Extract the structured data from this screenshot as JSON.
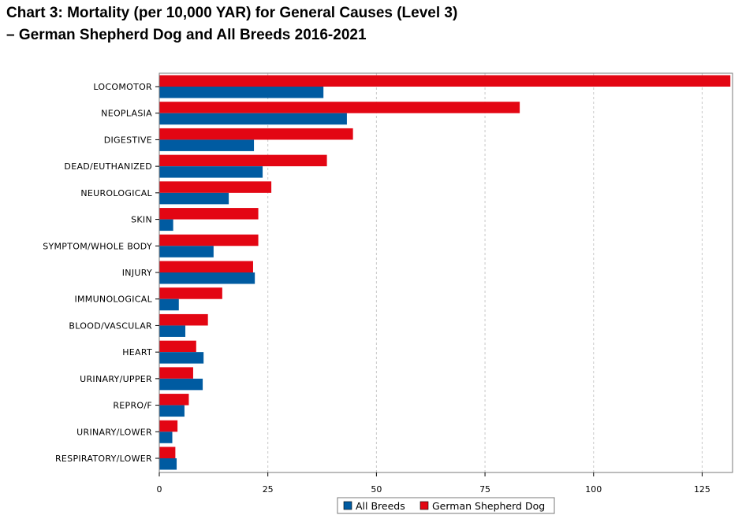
{
  "title_line1": "Chart 3: Mortality (per 10,000 YAR) for General Causes (Level 3)",
  "title_line2": "–  German Shepherd Dog and All Breeds 2016-2021",
  "colors": {
    "gsd": "#e30613",
    "all": "#005ba1",
    "grid": "#c8c8c8"
  },
  "chart_data": {
    "type": "bar",
    "orientation": "horizontal",
    "title": "Chart 3: Mortality (per 10,000 YAR) for General Causes (Level 3) –  German Shepherd Dog and All Breeds 2016-2021",
    "xlabel": "",
    "ylabel": "",
    "xlim": [
      0,
      132
    ],
    "xticks": [
      0,
      25,
      50,
      75,
      100,
      125
    ],
    "grid": "vertical dashed",
    "legend": "bottom",
    "categories": [
      "LOCOMOTOR",
      "NEOPLASIA",
      "DIGESTIVE",
      "DEAD/EUTHANIZED",
      "NEUROLOGICAL",
      "SKIN",
      "SYMPTOM/WHOLE BODY",
      "INJURY",
      "IMMUNOLOGICAL",
      "BLOOD/VASCULAR",
      "HEART",
      "URINARY/UPPER",
      "REPRO/F",
      "URINARY/LOWER",
      "RESPIRATORY/LOWER"
    ],
    "series": [
      {
        "name": "All Breeds",
        "color": "#005ba1",
        "values": [
          37.8,
          43.2,
          21.8,
          23.8,
          16.0,
          3.2,
          12.5,
          22.0,
          4.5,
          6.0,
          10.2,
          10.0,
          5.8,
          3.0,
          4.0
        ]
      },
      {
        "name": "German Shepherd Dog",
        "color": "#e30613",
        "values": [
          131.5,
          83.0,
          44.6,
          38.6,
          25.8,
          22.8,
          22.8,
          21.6,
          14.5,
          11.2,
          8.5,
          7.8,
          6.8,
          4.2,
          3.7
        ]
      }
    ]
  }
}
